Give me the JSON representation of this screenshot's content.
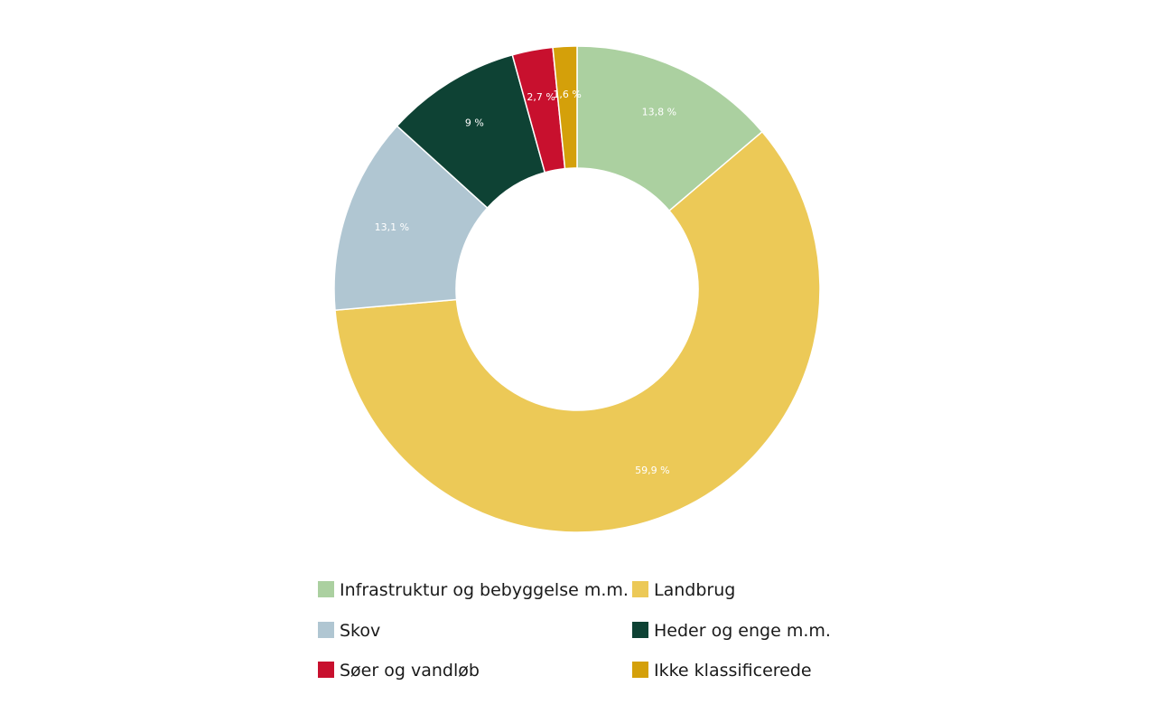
{
  "chart_data": {
    "type": "pie",
    "donut": true,
    "legend_position": "bottom",
    "slices": [
      {
        "label": "Infrastruktur og bebyggelse m.m.",
        "value": 13.8,
        "value_label": "13,8 %",
        "color": "#abd0a0"
      },
      {
        "label": "Landbrug",
        "value": 59.9,
        "value_label": "59,9 %",
        "color": "#ecc957"
      },
      {
        "label": "Skov",
        "value": 13.1,
        "value_label": "13,1 %",
        "color": "#b0c6d2"
      },
      {
        "label": "Heder og enge m.m.",
        "value": 9,
        "value_label": "9 %",
        "color": "#0e4234"
      },
      {
        "label": "Søer og vandløb",
        "value": 2.7,
        "value_label": "2,7 %",
        "color": "#c8102e"
      },
      {
        "label": "Ikke klassificerede",
        "value": 1.6,
        "value_label": "1,6 %",
        "color": "#d4a00a"
      }
    ],
    "legend_order": [
      "Infrastruktur og bebyggelse m.m.",
      "Landbrug",
      "Skov",
      "Heder og enge m.m.",
      "Søer og vandløb",
      "Ikke klassificerede"
    ]
  }
}
